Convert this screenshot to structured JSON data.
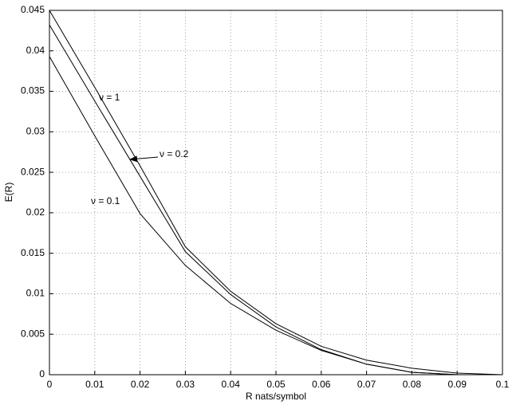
{
  "chart_data": {
    "type": "line",
    "xlabel": "R nats/symbol",
    "ylabel": "E(R)",
    "x": [
      0,
      0.01,
      0.02,
      0.03,
      0.04,
      0.05,
      0.06,
      0.07,
      0.08,
      0.09,
      0.1
    ],
    "series": [
      {
        "name": "ν = 1",
        "color": "#000000",
        "values": [
          0.045,
          0.0355,
          0.0258,
          0.0158,
          0.0103,
          0.0063,
          0.0035,
          0.0018,
          0.0008,
          0.0002,
          0
        ]
      },
      {
        "name": "ν = 0.2",
        "color": "#000000",
        "values": [
          0.0432,
          0.0338,
          0.0245,
          0.0152,
          0.0099,
          0.0059,
          0.0031,
          0.0013,
          0.0003,
          0,
          0
        ]
      },
      {
        "name": "ν = 0.1",
        "color": "#000000",
        "values": [
          0.0393,
          0.0295,
          0.0199,
          0.0135,
          0.0088,
          0.0055,
          0.003,
          0.0013,
          0.0003,
          0,
          0
        ]
      }
    ],
    "xlim": [
      0,
      0.1
    ],
    "ylim": [
      0,
      0.045
    ],
    "xticks": [
      0,
      0.01,
      0.02,
      0.03,
      0.04,
      0.05,
      0.06,
      0.07,
      0.08,
      0.09,
      0.1
    ],
    "yticks": [
      0,
      0.005,
      0.01,
      0.015,
      0.02,
      0.025,
      0.03,
      0.035,
      0.04,
      0.045
    ],
    "grid": true
  }
}
